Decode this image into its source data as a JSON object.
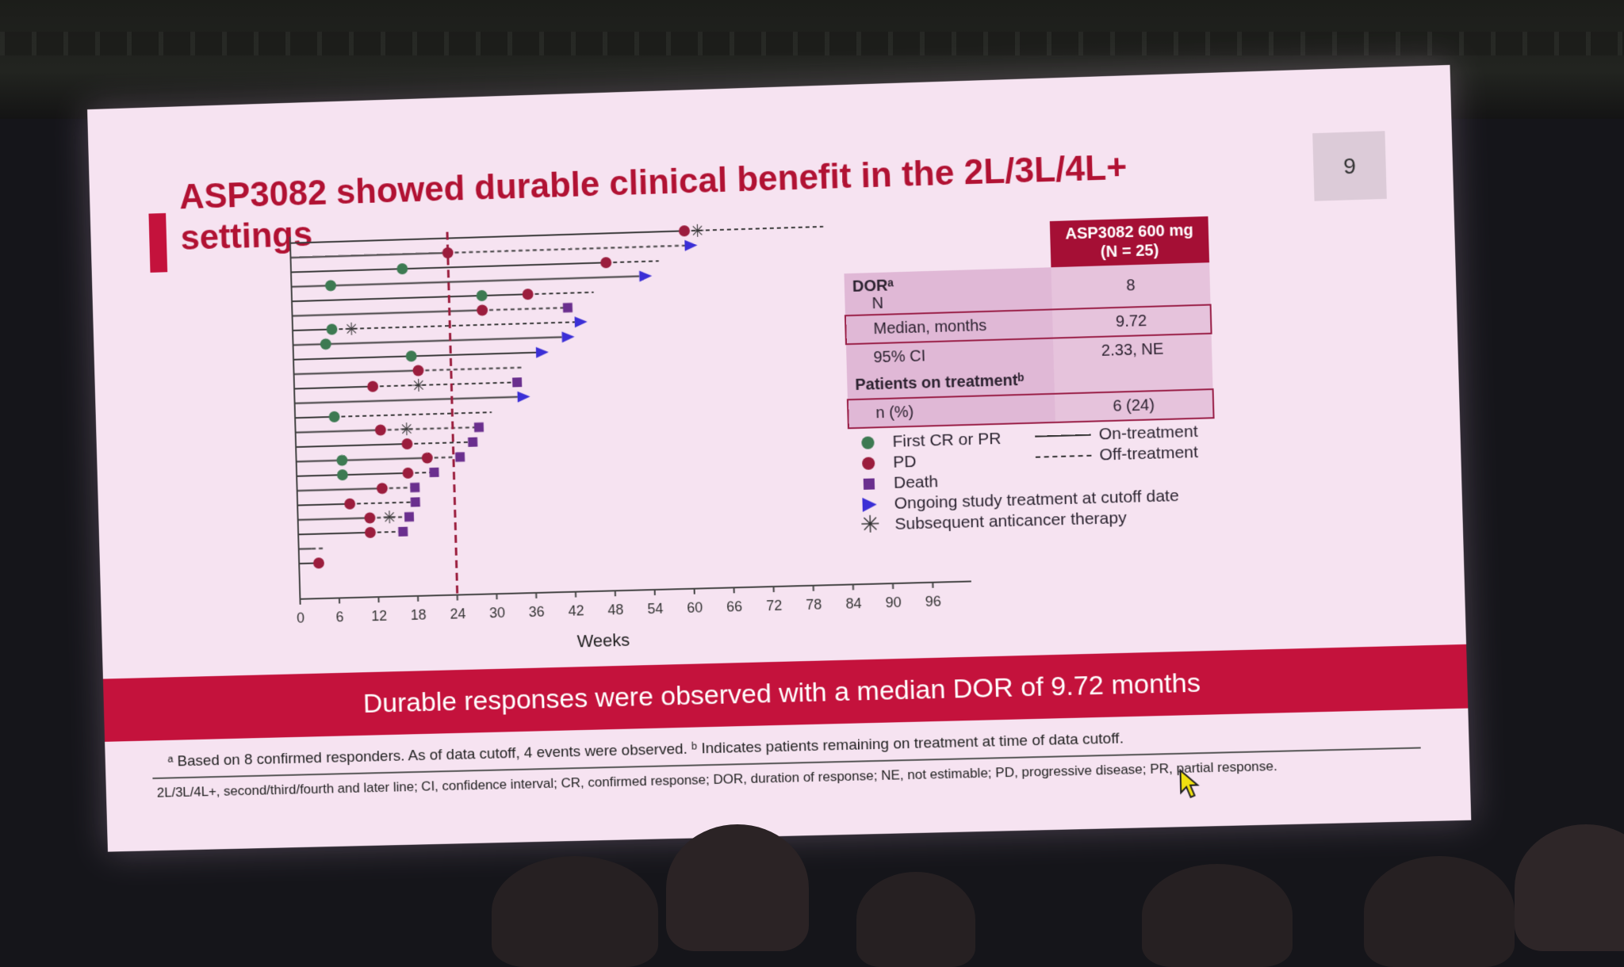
{
  "slide": {
    "title": "ASP3082 showed durable clinical benefit in the 2L/3L/4L+ settings",
    "page_number": "9",
    "banner": "Durable responses were observed with a median DOR of 9.72 months",
    "footnote_main": "ᵃ Based on 8 confirmed responders. As of data cutoff, 4 events were observed. ᵇ Indicates patients remaining on treatment at time of data cutoff.",
    "footnote_abbrev": "2L/3L/4L+, second/third/fourth and later line; CI, confidence interval; CR, confirmed response; DOR, duration of response; NE, not estimable; PD, progressive disease; PR, partial response."
  },
  "dor_table": {
    "header": [
      "ASP3082 600 mg",
      "(N = 25)"
    ],
    "dor_label": "DORᵃ",
    "rows": [
      {
        "label": "N",
        "value": "8"
      },
      {
        "label": "Median, months",
        "value": "9.72"
      },
      {
        "label": "95% CI",
        "value": "2.33, NE"
      }
    ],
    "treatment_label": "Patients on treatmentᵇ",
    "treatment_row": {
      "label": "n (%)",
      "value": "6 (24)"
    }
  },
  "legend": {
    "first_cr_pr": "First CR or PR",
    "pd": "PD",
    "death": "Death",
    "ongoing": "Ongoing study treatment at cutoff date",
    "subsequent": "Subsequent anticancer therapy",
    "on_treatment": "On-treatment",
    "off_treatment": "Off-treatment"
  },
  "colors": {
    "slide_bg": "#f6e3f1",
    "accent": "#c4123c",
    "title": "#b11233",
    "cr_pr": "#3d7a52",
    "pd": "#9b1d3d",
    "death": "#6a2f8e",
    "ongoing": "#3b2fd6"
  },
  "chart_data": {
    "type": "swimmer",
    "xlabel": "Weeks",
    "xlim": [
      0,
      102
    ],
    "xticks": [
      0,
      6,
      12,
      18,
      24,
      30,
      36,
      42,
      48,
      54,
      60,
      66,
      72,
      78,
      84,
      90,
      96
    ],
    "reference_line_week": 24,
    "patients": [
      {
        "on": 60,
        "off": 81,
        "cr": null,
        "pd": 60,
        "death": null,
        "ongoing": false,
        "sub": 62
      },
      {
        "on": 24,
        "off": 60,
        "cr": null,
        "pd": 24,
        "death": null,
        "ongoing": true,
        "sub": null
      },
      {
        "on": 48,
        "off": 56,
        "cr": 17,
        "pd": 48,
        "death": null,
        "ongoing": false,
        "sub": null
      },
      {
        "on": 53,
        "off": 53,
        "cr": 6,
        "pd": null,
        "death": null,
        "ongoing": true,
        "sub": null
      },
      {
        "on": 36,
        "off": 46,
        "cr": 29,
        "pd": 36,
        "death": null,
        "ongoing": false,
        "sub": null
      },
      {
        "on": 29,
        "off": 42,
        "cr": null,
        "pd": 29,
        "death": 42,
        "ongoing": false,
        "sub": null
      },
      {
        "on": 6,
        "off": 43,
        "cr": 6,
        "pd": null,
        "death": null,
        "ongoing": true,
        "sub": 9
      },
      {
        "on": 41,
        "off": 41,
        "cr": 5,
        "pd": null,
        "death": null,
        "ongoing": true,
        "sub": null
      },
      {
        "on": 37,
        "off": 37,
        "cr": 18,
        "pd": null,
        "death": null,
        "ongoing": true,
        "sub": null
      },
      {
        "on": 19,
        "off": 35,
        "cr": null,
        "pd": 19,
        "death": null,
        "ongoing": false,
        "sub": null
      },
      {
        "on": 12,
        "off": 34,
        "cr": null,
        "pd": 12,
        "death": 34,
        "ongoing": false,
        "sub": 19
      },
      {
        "on": 34,
        "off": 34,
        "cr": null,
        "pd": null,
        "death": null,
        "ongoing": true,
        "sub": null
      },
      {
        "on": 6,
        "off": 30,
        "cr": 6,
        "pd": null,
        "death": null,
        "ongoing": false,
        "sub": null
      },
      {
        "on": 13,
        "off": 28,
        "cr": null,
        "pd": 13,
        "death": 28,
        "ongoing": false,
        "sub": 17
      },
      {
        "on": 17,
        "off": 27,
        "cr": null,
        "pd": 17,
        "death": 27,
        "ongoing": false,
        "sub": null
      },
      {
        "on": 20,
        "off": 25,
        "cr": 7,
        "pd": 20,
        "death": 25,
        "ongoing": false,
        "sub": null
      },
      {
        "on": 17,
        "off": 21,
        "cr": 7,
        "pd": 17,
        "death": 21,
        "ongoing": false,
        "sub": null
      },
      {
        "on": 13,
        "off": 18,
        "cr": null,
        "pd": 13,
        "death": 18,
        "ongoing": false,
        "sub": null
      },
      {
        "on": 8,
        "off": 18,
        "cr": null,
        "pd": 8,
        "death": 18,
        "ongoing": false,
        "sub": null
      },
      {
        "on": 11,
        "off": 17,
        "cr": null,
        "pd": 11,
        "death": 17,
        "ongoing": false,
        "sub": 14
      },
      {
        "on": 11,
        "off": 16,
        "cr": null,
        "pd": 11,
        "death": 16,
        "ongoing": false,
        "sub": null
      },
      {
        "on": 2,
        "off": 4,
        "cr": null,
        "pd": null,
        "death": null,
        "ongoing": false,
        "sub": null
      },
      {
        "on": 3,
        "off": 3,
        "cr": null,
        "pd": 3,
        "death": null,
        "ongoing": false,
        "sub": null
      }
    ]
  }
}
